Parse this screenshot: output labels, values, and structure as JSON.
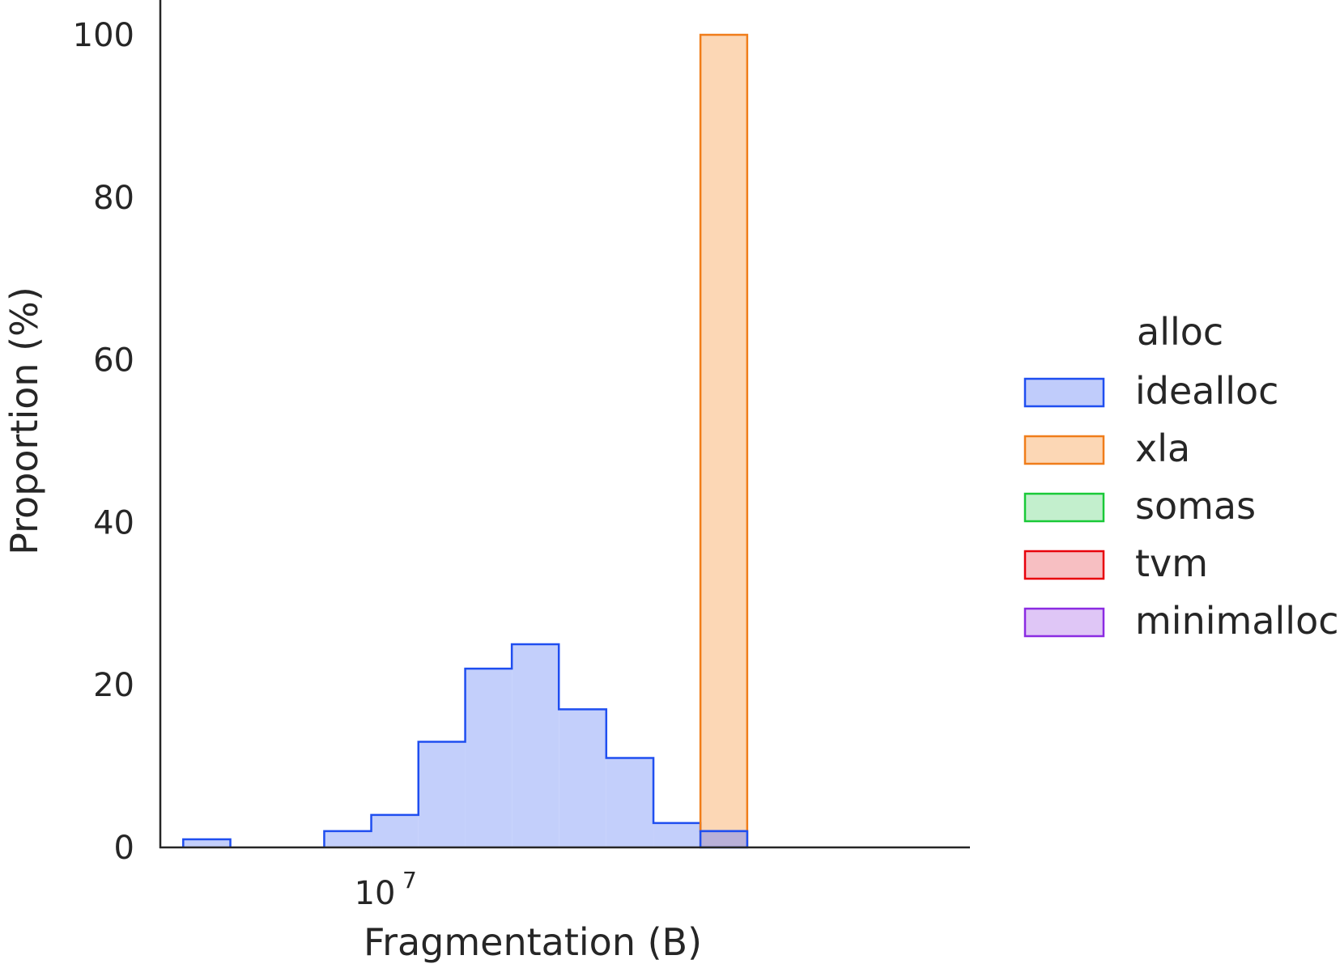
{
  "chart_data": {
    "type": "histogram",
    "xlabel": "Fragmentation (B)",
    "ylabel": "Proportion (%)",
    "x_scale": "log",
    "y_ticks": [
      "0",
      "20",
      "40",
      "60",
      "80",
      "100"
    ],
    "y_tick_values": [
      0,
      20,
      40,
      60,
      80,
      100
    ],
    "x_ticks": [
      {
        "base": "10",
        "exponent": "7",
        "value": 10000000
      }
    ],
    "ylim": [
      0,
      100
    ],
    "xlim": [
      4100000,
      110000000
    ],
    "grid": false,
    "legend": {
      "title": "alloc",
      "position": "right",
      "entries": [
        "idealloc",
        "xla",
        "somas",
        "tvm",
        "minimalloc"
      ]
    },
    "series": [
      {
        "name": "idealloc",
        "edge": "#1f4ef0",
        "fill": "#c0ccfb",
        "bins": [
          {
            "x0": 4500000,
            "x1": 5450000,
            "value": 1
          },
          {
            "x0": 5450000,
            "x1": 6590000,
            "value": 0
          },
          {
            "x0": 6590000,
            "x1": 7980000,
            "value": 0
          },
          {
            "x0": 7980000,
            "x1": 9660000,
            "value": 2
          },
          {
            "x0": 9660000,
            "x1": 11700000,
            "value": 4
          },
          {
            "x0": 11700000,
            "x1": 14150000,
            "value": 13
          },
          {
            "x0": 14150000,
            "x1": 17100000,
            "value": 22
          },
          {
            "x0": 17100000,
            "x1": 20700000,
            "value": 25
          },
          {
            "x0": 20700000,
            "x1": 25100000,
            "value": 17
          },
          {
            "x0": 25100000,
            "x1": 30400000,
            "value": 11
          },
          {
            "x0": 30400000,
            "x1": 36800000,
            "value": 3
          },
          {
            "x0": 36800000,
            "x1": 44500000,
            "value": 2
          }
        ]
      },
      {
        "name": "xla",
        "edge": "#f07d1a",
        "fill": "#fcd7b5",
        "bins": [
          {
            "x0": 36800000,
            "x1": 44500000,
            "value": 100
          }
        ]
      },
      {
        "name": "somas",
        "edge": "#1ac938",
        "fill": "#c3efcd",
        "bins": []
      },
      {
        "name": "tvm",
        "edge": "#e8000b",
        "fill": "#f7bfc2",
        "bins": []
      },
      {
        "name": "minimalloc",
        "edge": "#8b2be2",
        "fill": "#dfc6f6",
        "bins": []
      }
    ]
  }
}
